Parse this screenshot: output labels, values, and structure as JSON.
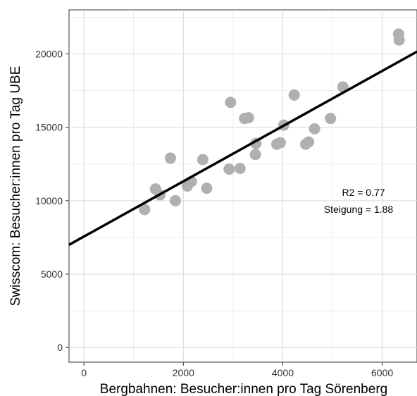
{
  "chart_data": {
    "type": "scatter",
    "title": "",
    "xlabel": "Bergbahnen: Besucher:innen pro Tag Sörenberg",
    "ylabel": "Swisscom: Besucher:innen pro Tag UBE",
    "xlim": [
      -300,
      6700
    ],
    "ylim": [
      -1000,
      23000
    ],
    "x_ticks": [
      0,
      2000,
      4000,
      6000
    ],
    "y_ticks": [
      0,
      5000,
      10000,
      15000,
      20000
    ],
    "grid": true,
    "legend": "none",
    "point_color": "#b0b0b0",
    "line_color": "#000000",
    "points": [
      {
        "x": 1220,
        "y": 9400
      },
      {
        "x": 1440,
        "y": 10800
      },
      {
        "x": 1530,
        "y": 10400
      },
      {
        "x": 1740,
        "y": 12900
      },
      {
        "x": 1840,
        "y": 10000
      },
      {
        "x": 2080,
        "y": 11000
      },
      {
        "x": 2160,
        "y": 11300
      },
      {
        "x": 2390,
        "y": 12800
      },
      {
        "x": 2470,
        "y": 10850
      },
      {
        "x": 2920,
        "y": 12150
      },
      {
        "x": 2950,
        "y": 16700
      },
      {
        "x": 3140,
        "y": 12200
      },
      {
        "x": 3230,
        "y": 15600
      },
      {
        "x": 3310,
        "y": 15650
      },
      {
        "x": 3450,
        "y": 13150
      },
      {
        "x": 3460,
        "y": 13900
      },
      {
        "x": 3880,
        "y": 13850
      },
      {
        "x": 3950,
        "y": 13950
      },
      {
        "x": 4020,
        "y": 15150
      },
      {
        "x": 4230,
        "y": 17200
      },
      {
        "x": 4460,
        "y": 13850
      },
      {
        "x": 4520,
        "y": 14000
      },
      {
        "x": 4640,
        "y": 14900
      },
      {
        "x": 4960,
        "y": 15600
      },
      {
        "x": 5210,
        "y": 17750
      },
      {
        "x": 6330,
        "y": 21350
      },
      {
        "x": 6340,
        "y": 20950
      }
    ],
    "regression": {
      "intercept": 7560,
      "slope": 1.88
    },
    "annotations": [
      "R2 = 0.77",
      "Steigung = 1.88"
    ]
  }
}
